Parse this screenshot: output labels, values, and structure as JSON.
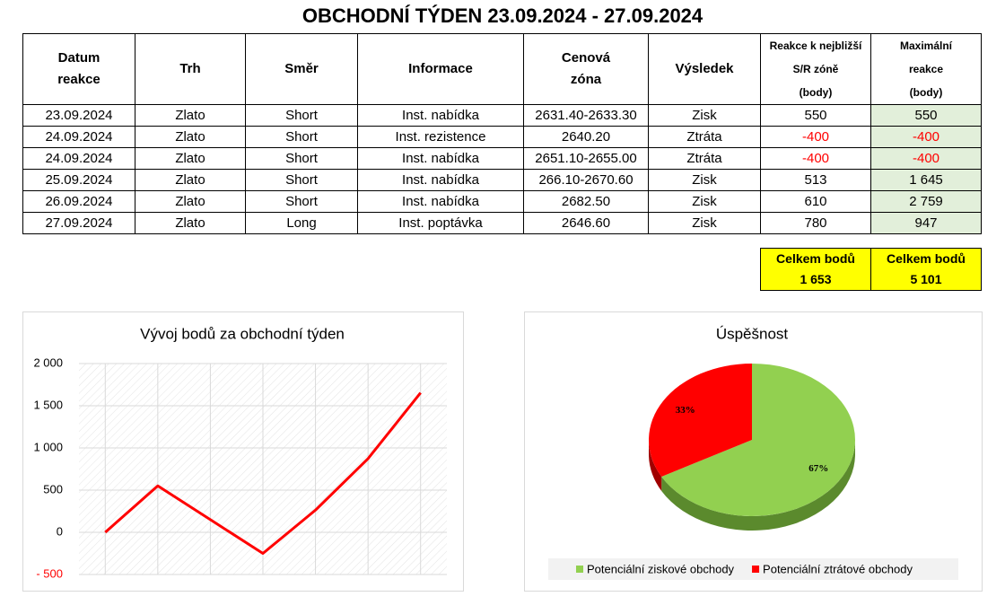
{
  "title": "OBCHODNÍ TÝDEN 23.09.2024 - 27.09.2024",
  "table": {
    "header": [
      [
        "Datum",
        "reakce"
      ],
      [
        "Trh"
      ],
      [
        "Směr"
      ],
      [
        "Informace"
      ],
      [
        "Cenová",
        "zóna"
      ],
      [
        "Výsledek"
      ],
      [
        "Reakce k nejbližší",
        "S/R zóně",
        "(body)"
      ],
      [
        "Maximální",
        "reakce",
        "(body)"
      ]
    ],
    "rows": [
      [
        "23.09.2024",
        "Zlato",
        "Short",
        "Inst. nabídka",
        "2631.40-2633.30",
        "Zisk",
        "550",
        "550"
      ],
      [
        "24.09.2024",
        "Zlato",
        "Short",
        "Inst. rezistence",
        "2640.20",
        "Ztráta",
        "-400",
        "-400"
      ],
      [
        "24.09.2024",
        "Zlato",
        "Short",
        "Inst. nabídka",
        "2651.10-2655.00",
        "Ztráta",
        "-400",
        "-400"
      ],
      [
        "25.09.2024",
        "Zlato",
        "Short",
        "Inst. nabídka",
        "266.10-2670.60",
        "Zisk",
        "513",
        "1 645"
      ],
      [
        "26.09.2024",
        "Zlato",
        "Short",
        "Inst. nabídka",
        "2682.50",
        "Zisk",
        "610",
        "2 759"
      ],
      [
        "27.09.2024",
        "Zlato",
        "Long",
        "Inst. poptávka",
        "2646.60",
        "Zisk",
        "780",
        "947"
      ]
    ]
  },
  "totals": [
    {
      "label": "Celkem bodů",
      "value": "1 653"
    },
    {
      "label": "Celkem bodů",
      "value": "5 101"
    }
  ],
  "chart_data": [
    {
      "type": "line",
      "title": "Vývoj bodů za obchodní týden",
      "categories": [
        null,
        null,
        null,
        null,
        null,
        null,
        null
      ],
      "values": [
        0,
        550,
        150,
        -250,
        263,
        873,
        1653
      ],
      "color": "#ff0000",
      "ylim": [
        -500,
        2000
      ],
      "yticks": [
        {
          "value": -500,
          "label": "- 500"
        },
        0,
        500,
        {
          "value": 1000,
          "label": "1 000"
        },
        {
          "value": 1500,
          "label": "1 500"
        },
        {
          "value": 2000,
          "label": "2 000"
        }
      ],
      "grid": true
    },
    {
      "type": "pie",
      "title": "Úspěšnost",
      "series": [
        {
          "name": "Potenciální ziskové obchody",
          "color": "#92d050",
          "values": [
            67
          ],
          "value_labels": [
            "67%"
          ]
        },
        {
          "name": "Potenciální ztrátové obchody",
          "color": "#ff0000",
          "values": [
            33
          ],
          "value_labels": [
            "33%"
          ]
        }
      ],
      "legend": "bottom"
    }
  ]
}
